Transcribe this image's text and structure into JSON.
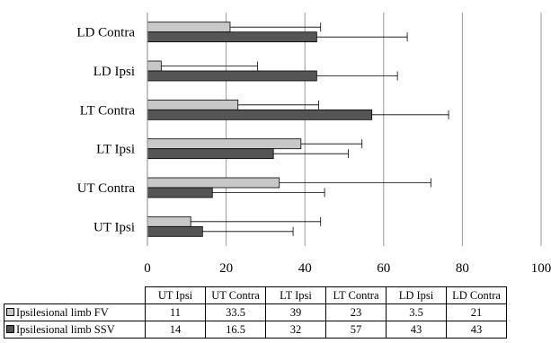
{
  "chart_data": {
    "type": "bar",
    "orientation": "horizontal",
    "categories": [
      "UT Ipsi",
      "UT Contra",
      "LT Ipsi",
      "LT Contra",
      "LD Ipsi",
      "LD Contra"
    ],
    "series": [
      {
        "name": "Ipsilesional limb FV",
        "values": [
          11,
          33.5,
          39,
          23,
          3.5,
          21
        ],
        "errors": [
          33,
          38.5,
          15.5,
          20.5,
          24.5,
          23
        ],
        "color": "#c8c8c8"
      },
      {
        "name": "Ipsilesional limb SSV",
        "values": [
          14,
          16.5,
          32,
          57,
          43,
          43
        ],
        "errors": [
          23,
          28.5,
          19,
          19.5,
          20.5,
          23
        ],
        "color": "#555555"
      }
    ],
    "xlim": [
      0,
      100
    ],
    "xticks": [
      "0",
      "20",
      "40",
      "60",
      "80",
      "100"
    ],
    "grid": "vertical",
    "legend": "data-table"
  }
}
